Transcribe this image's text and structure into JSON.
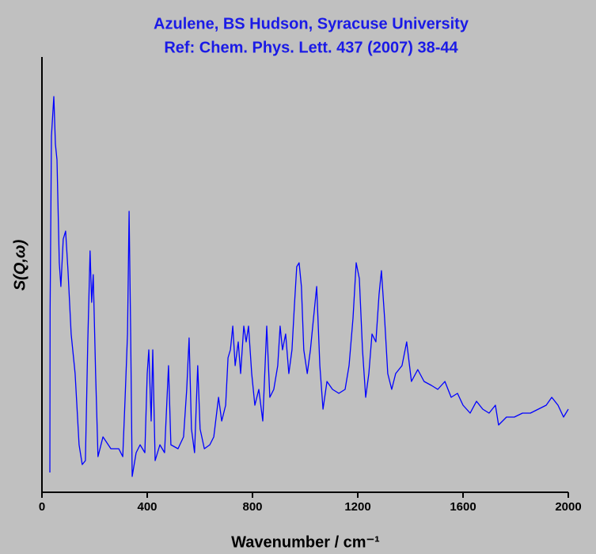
{
  "chart_data": {
    "type": "line",
    "title": "Azulene, BS Hudson, Syracuse University",
    "subtitle": "Ref: Chem. Phys. Lett. 437 (2007) 38-44",
    "x_label": "Wavenumber / cm⁻¹",
    "y_label": "S(Q,ω)",
    "xlim": [
      0,
      2000
    ],
    "xticks": [
      0,
      400,
      800,
      1200,
      1600,
      2000
    ],
    "ylim": [
      0,
      110
    ],
    "x": [
      30,
      31,
      36,
      45,
      51,
      57,
      66,
      72,
      81,
      90,
      99,
      111,
      126,
      141,
      153,
      165,
      174,
      183,
      189,
      195,
      204,
      213,
      232,
      262,
      292,
      307,
      316,
      325,
      331,
      337,
      343,
      358,
      373,
      391,
      400,
      406,
      415,
      421,
      430,
      448,
      466,
      481,
      490,
      517,
      538,
      550,
      559,
      568,
      580,
      592,
      601,
      617,
      638,
      653,
      671,
      683,
      698,
      707,
      716,
      725,
      734,
      746,
      755,
      767,
      776,
      785,
      797,
      809,
      824,
      839,
      854,
      866,
      881,
      896,
      905,
      914,
      926,
      938,
      950,
      959,
      968,
      977,
      986,
      995,
      1008,
      1020,
      1032,
      1044,
      1056,
      1068,
      1083,
      1104,
      1128,
      1152,
      1167,
      1182,
      1194,
      1206,
      1218,
      1230,
      1242,
      1254,
      1269,
      1281,
      1290,
      1302,
      1314,
      1329,
      1344,
      1368,
      1386,
      1404,
      1428,
      1452,
      1480,
      1504,
      1531,
      1555,
      1579,
      1600,
      1627,
      1651,
      1675,
      1699,
      1723,
      1735,
      1765,
      1795,
      1826,
      1856,
      1886,
      1916,
      1937,
      1961,
      1982,
      2000
    ],
    "series": [
      {
        "name": "S(Q,ω)",
        "color": "#0000ff",
        "values": [
          5,
          46,
          90,
          100,
          88,
          84,
          58,
          52,
          64,
          66,
          56,
          40,
          30,
          12,
          7,
          8,
          38,
          61,
          48,
          55,
          30,
          9,
          14,
          11,
          11,
          9,
          24,
          40,
          71,
          40,
          4,
          10,
          12,
          10,
          30,
          36,
          18,
          36,
          8,
          12,
          10,
          32,
          12,
          11,
          14,
          26,
          39,
          16,
          10,
          32,
          16,
          11,
          12,
          14,
          24,
          18,
          22,
          34,
          36,
          42,
          32,
          38,
          30,
          42,
          38,
          42,
          30,
          22,
          26,
          18,
          42,
          24,
          26,
          32,
          42,
          36,
          40,
          30,
          36,
          47,
          57,
          58,
          52,
          36,
          30,
          36,
          44,
          52,
          32,
          21,
          28,
          26,
          25,
          26,
          32,
          44,
          58,
          54,
          36,
          24,
          30,
          40,
          38,
          50,
          56,
          44,
          30,
          26,
          30,
          32,
          38,
          28,
          31,
          28,
          27,
          26,
          28,
          24,
          25,
          22,
          20,
          23,
          21,
          20,
          22,
          17,
          19,
          19,
          20,
          20,
          21,
          22,
          24,
          22,
          19,
          21
        ]
      }
    ]
  }
}
